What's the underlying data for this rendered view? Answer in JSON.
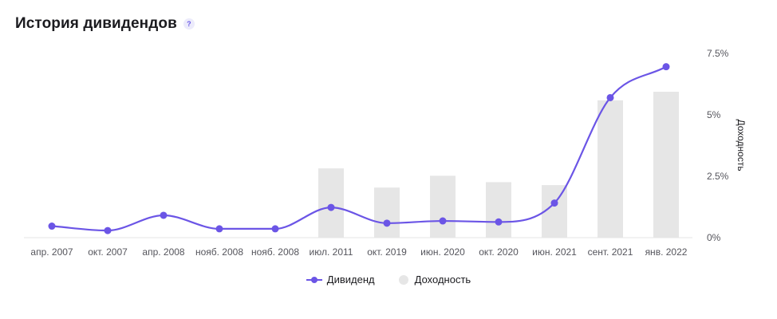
{
  "header": {
    "title": "История дивидендов",
    "help_glyph": "?"
  },
  "legend": {
    "dividend_label": "Дивиденд",
    "yield_label": "Доходность"
  },
  "chart_data": {
    "type": "bar+line",
    "categories": [
      "апр. 2007",
      "окт. 2007",
      "апр. 2008",
      "нояб. 2008",
      "нояб. 2008",
      "июл. 2011",
      "окт. 2019",
      "июн. 2020",
      "окт. 2020",
      "июн. 2021",
      "сент. 2021",
      "янв. 2022"
    ],
    "series": [
      {
        "name": "Дивиденд",
        "kind": "line",
        "color": "#6b55e6",
        "values": [
          0.47,
          0.29,
          0.91,
          0.36,
          0.36,
          1.23,
          0.59,
          0.68,
          0.64,
          1.41,
          5.7,
          6.96
        ]
      },
      {
        "name": "Доходность",
        "kind": "bar",
        "color": "#e6e6e6",
        "values": [
          null,
          null,
          null,
          null,
          null,
          2.82,
          2.04,
          2.52,
          2.26,
          2.14,
          5.59,
          5.94
        ]
      }
    ],
    "y_axis": {
      "title": "Доходность",
      "ticks": [
        "0%",
        "2.5%",
        "5%",
        "7.5%"
      ],
      "tick_values": [
        0,
        2.5,
        5,
        7.5
      ],
      "range": [
        0,
        7.5
      ],
      "position": "right"
    },
    "grid": false,
    "legend_position": "bottom-center"
  }
}
